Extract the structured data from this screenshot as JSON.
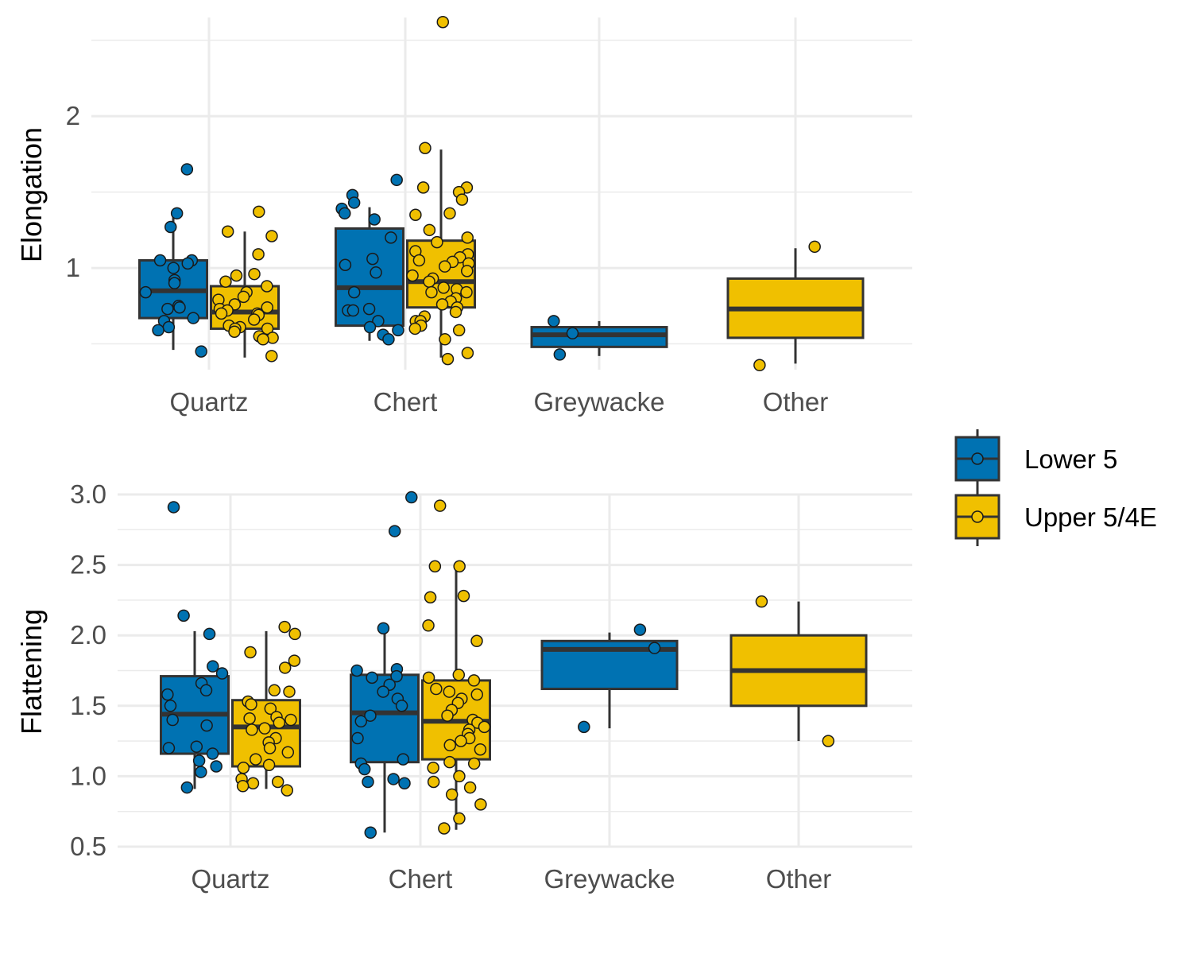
{
  "chart_data": [
    {
      "type": "boxplot",
      "ylabel": "Elongation",
      "xlabel": "",
      "categories": [
        "Quartz",
        "Chert",
        "Greywacke",
        "Other"
      ],
      "ylim": [
        0.33,
        2.65
      ],
      "yticks": [
        1,
        2
      ],
      "yticklabels": [
        "1",
        "2"
      ],
      "series": [
        {
          "name": "Lower 5",
          "boxes": [
            {
              "category": "Quartz",
              "whisker_low": 0.46,
              "q1": 0.67,
              "median": 0.85,
              "q3": 1.05,
              "whisker_high": 1.35,
              "points": [
                1.65,
                1.36,
                1.27,
                1.05,
                1.05,
                1.03,
                1.0,
                0.92,
                0.9,
                0.84,
                0.75,
                0.74,
                0.73,
                0.67,
                0.65,
                0.61,
                0.59,
                0.45
              ]
            },
            {
              "category": "Chert",
              "whisker_low": 0.52,
              "q1": 0.62,
              "median": 0.87,
              "q3": 1.26,
              "whisker_high": 1.4,
              "points": [
                1.58,
                1.48,
                1.43,
                1.39,
                1.36,
                1.32,
                1.2,
                1.06,
                1.02,
                0.97,
                0.84,
                0.73,
                0.72,
                0.72,
                0.65,
                0.61,
                0.59,
                0.56,
                0.53
              ]
            },
            {
              "category": "Greywacke",
              "whisker_low": 0.42,
              "q1": 0.48,
              "median": 0.56,
              "q3": 0.61,
              "whisker_high": 0.65,
              "points": [
                0.65,
                0.57,
                0.43
              ]
            }
          ]
        },
        {
          "name": "Upper 5/4E",
          "boxes": [
            {
              "category": "Quartz",
              "whisker_low": 0.41,
              "q1": 0.6,
              "median": 0.71,
              "q3": 0.88,
              "whisker_high": 1.24,
              "points": [
                1.37,
                1.24,
                1.21,
                1.09,
                0.96,
                0.95,
                0.91,
                0.88,
                0.84,
                0.81,
                0.79,
                0.76,
                0.74,
                0.73,
                0.72,
                0.7,
                0.7,
                0.69,
                0.66,
                0.62,
                0.61,
                0.6,
                0.6,
                0.58,
                0.55,
                0.54,
                0.53,
                0.42
              ]
            },
            {
              "category": "Chert",
              "whisker_low": 0.41,
              "q1": 0.74,
              "median": 0.91,
              "q3": 1.18,
              "whisker_high": 1.78,
              "points": [
                2.62,
                1.79,
                1.53,
                1.53,
                1.5,
                1.45,
                1.36,
                1.35,
                1.25,
                1.2,
                1.17,
                1.11,
                1.09,
                1.07,
                1.05,
                1.04,
                1.03,
                1.01,
                0.98,
                0.95,
                0.93,
                0.91,
                0.87,
                0.86,
                0.84,
                0.84,
                0.8,
                0.78,
                0.76,
                0.74,
                0.71,
                0.68,
                0.65,
                0.65,
                0.62,
                0.6,
                0.59,
                0.53,
                0.44,
                0.4
              ]
            },
            {
              "category": "Other",
              "whisker_low": 0.37,
              "q1": 0.54,
              "median": 0.73,
              "q3": 0.93,
              "whisker_high": 1.13,
              "points": [
                1.14,
                0.36
              ]
            }
          ]
        }
      ],
      "grid": true
    },
    {
      "type": "boxplot",
      "ylabel": "Flattening",
      "xlabel": "",
      "categories": [
        "Quartz",
        "Chert",
        "Greywacke",
        "Other"
      ],
      "ylim": [
        0.5,
        3.0
      ],
      "yticks": [
        0.5,
        1.0,
        1.5,
        2.0,
        2.5,
        3.0
      ],
      "yticklabels": [
        "0.5",
        "1.0",
        "1.5",
        "2.0",
        "2.5",
        "3.0"
      ],
      "series": [
        {
          "name": "Lower 5",
          "boxes": [
            {
              "category": "Quartz",
              "whisker_low": 0.91,
              "q1": 1.16,
              "median": 1.44,
              "q3": 1.71,
              "whisker_high": 2.03,
              "points": [
                2.91,
                2.14,
                2.01,
                1.78,
                1.73,
                1.66,
                1.61,
                1.58,
                1.5,
                1.4,
                1.36,
                1.21,
                1.2,
                1.16,
                1.11,
                1.07,
                1.03,
                0.92
              ]
            },
            {
              "category": "Chert",
              "whisker_low": 0.6,
              "q1": 1.1,
              "median": 1.45,
              "q3": 1.72,
              "whisker_high": 2.05,
              "points": [
                2.98,
                2.74,
                2.05,
                1.76,
                1.75,
                1.71,
                1.7,
                1.65,
                1.6,
                1.55,
                1.5,
                1.43,
                1.39,
                1.27,
                1.12,
                1.09,
                1.05,
                0.98,
                0.96,
                0.95,
                0.6
              ]
            },
            {
              "category": "Greywacke",
              "whisker_low": 1.34,
              "q1": 1.62,
              "median": 1.9,
              "q3": 1.96,
              "whisker_high": 2.02,
              "points": [
                2.04,
                1.91,
                1.35
              ]
            }
          ]
        },
        {
          "name": "Upper 5/4E",
          "boxes": [
            {
              "category": "Quartz",
              "whisker_low": 0.91,
              "q1": 1.07,
              "median": 1.35,
              "q3": 1.54,
              "whisker_high": 2.03,
              "points": [
                2.06,
                2.01,
                1.88,
                1.82,
                1.77,
                1.61,
                1.6,
                1.53,
                1.51,
                1.48,
                1.42,
                1.41,
                1.4,
                1.38,
                1.34,
                1.33,
                1.27,
                1.24,
                1.2,
                1.17,
                1.12,
                1.08,
                1.06,
                0.98,
                0.96,
                0.95,
                0.93,
                0.9
              ]
            },
            {
              "category": "Chert",
              "whisker_low": 0.62,
              "q1": 1.12,
              "median": 1.39,
              "q3": 1.68,
              "whisker_high": 2.5,
              "points": [
                2.92,
                2.49,
                2.49,
                2.28,
                2.27,
                2.07,
                1.96,
                1.72,
                1.7,
                1.68,
                1.62,
                1.6,
                1.58,
                1.55,
                1.52,
                1.47,
                1.43,
                1.4,
                1.38,
                1.35,
                1.33,
                1.3,
                1.27,
                1.25,
                1.22,
                1.19,
                1.1,
                1.09,
                1.06,
                1.0,
                0.96,
                0.92,
                0.87,
                0.8,
                0.7,
                0.63
              ]
            },
            {
              "category": "Other",
              "whisker_low": 1.25,
              "q1": 1.5,
              "median": 1.75,
              "q3": 2.0,
              "whisker_high": 2.24,
              "points": [
                2.24,
                1.25
              ]
            }
          ]
        }
      ],
      "grid": true
    }
  ],
  "legend": {
    "placement": "right",
    "entries": [
      {
        "label": "Lower 5",
        "color": "#0072B2"
      },
      {
        "label": "Upper 5/4E",
        "color": "#F0C000"
      }
    ]
  },
  "colors": {
    "lower": "#0072B2",
    "upper": "#F0C000",
    "outline": "#333333",
    "grid": "#ebebeb"
  }
}
